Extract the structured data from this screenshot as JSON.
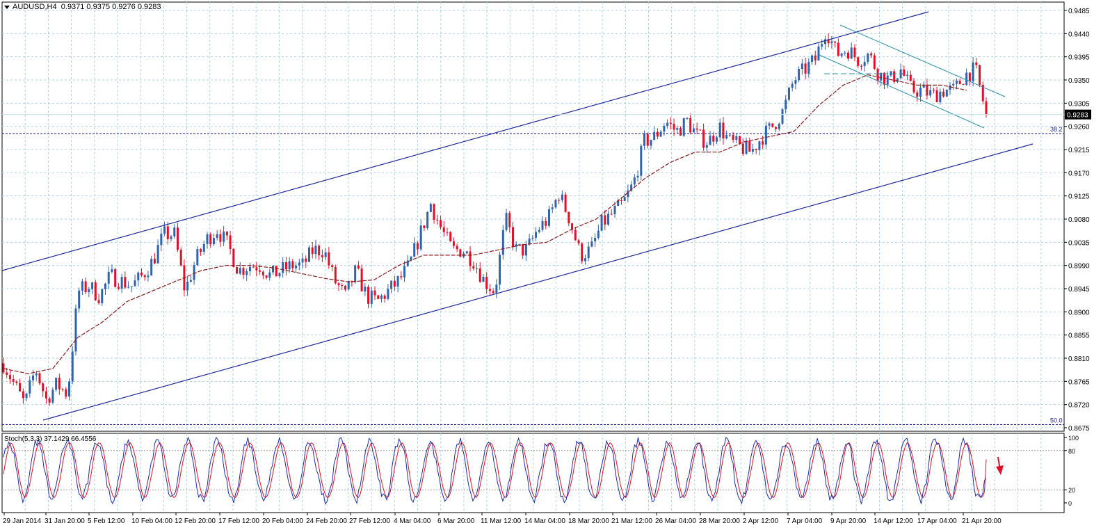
{
  "header": {
    "symbol": "AUDUSD,H4",
    "open": "0.9371",
    "high": "0.9375",
    "low": "0.9276",
    "close": "0.9283"
  },
  "stoch_header": {
    "name": "Stoch(5,3,3)",
    "main": "37.1429",
    "signal": "66.4556"
  },
  "current_price_label": "0.9283",
  "fib_levels": [
    {
      "label": "38.2",
      "price": 0.9246
    },
    {
      "label": "50.0",
      "price": 0.8681
    }
  ],
  "colors": {
    "up": "#2f64ad",
    "down": "#e0102a",
    "ma": "#8a1a1a",
    "channel": "#1f2a9a",
    "sub_channel": "#2a8fa8",
    "grid": "#a9d4e0",
    "stoch_main": "#1c2fa3",
    "stoch_signal": "#e0102a",
    "arrow": "#e0102a"
  },
  "chart_data": {
    "type": "candlestick",
    "symbol": "AUDUSD",
    "timeframe": "H4",
    "ylim": [
      0.8655,
      0.9508
    ],
    "y_ticks": [
      "0.9485",
      "0.9440",
      "0.9395",
      "0.9350",
      "0.9305",
      "0.9260",
      "0.9215",
      "0.9170",
      "0.9125",
      "0.9080",
      "0.9035",
      "0.8990",
      "0.8945",
      "0.8900",
      "0.8855",
      "0.8810",
      "0.8765",
      "0.8720",
      "0.8675"
    ],
    "x_labels": [
      "29 Jan 2014",
      "31 Jan 20:00",
      "5 Feb 12:00",
      "10 Feb 04:00",
      "12 Feb 20:00",
      "17 Feb 12:00",
      "20 Feb 04:00",
      "24 Feb 20:00",
      "27 Feb 12:00",
      "4 Mar 04:00",
      "6 Mar 20:00",
      "11 Mar 12:00",
      "14 Mar 04:00",
      "18 Mar 20:00",
      "21 Mar 12:00",
      "26 Mar 04:00",
      "28 Mar 20:00",
      "2 Apr 12:00",
      "7 Apr 04:00",
      "9 Apr 20:00",
      "14 Apr 12:00",
      "17 Apr 04:00",
      "21 Apr 20:00"
    ],
    "close_path": [
      0.88,
      0.876,
      0.872,
      0.879,
      0.873,
      0.876,
      0.874,
      0.894,
      0.895,
      0.893,
      0.897,
      0.896,
      0.895,
      0.897,
      0.9,
      0.905,
      0.905,
      0.894,
      0.9,
      0.904,
      0.906,
      0.903,
      0.898,
      0.899,
      0.899,
      0.897,
      0.898,
      0.899,
      0.899,
      0.902,
      0.902,
      0.896,
      0.893,
      0.898,
      0.893,
      0.892,
      0.894,
      0.896,
      0.899,
      0.905,
      0.911,
      0.906,
      0.902,
      0.902,
      0.9,
      0.896,
      0.894,
      0.908,
      0.902,
      0.902,
      0.906,
      0.908,
      0.913,
      0.908,
      0.901,
      0.902,
      0.907,
      0.909,
      0.911,
      0.915,
      0.923,
      0.924,
      0.927,
      0.925,
      0.927,
      0.924,
      0.923,
      0.926,
      0.923,
      0.922,
      0.921,
      0.924,
      0.926,
      0.929,
      0.935,
      0.937,
      0.939,
      0.945,
      0.94,
      0.941,
      0.939,
      0.94,
      0.936,
      0.935,
      0.937,
      0.933,
      0.933,
      0.932,
      0.933,
      0.933,
      0.936,
      0.937,
      0.9283
    ],
    "moving_average": [
      0.879,
      0.878,
      0.879,
      0.885,
      0.888,
      0.892,
      0.894,
      0.896,
      0.898,
      0.899,
      0.899,
      0.8985,
      0.8975,
      0.8965,
      0.8958,
      0.8962,
      0.899,
      0.901,
      0.901,
      0.901,
      0.902,
      0.903,
      0.9035,
      0.906,
      0.908,
      0.912,
      0.916,
      0.919,
      0.921,
      0.921,
      0.923,
      0.924,
      0.925,
      0.93,
      0.934,
      0.936,
      0.935,
      0.934,
      0.934,
      0.933
    ],
    "channel_upper": {
      "from": [
        "28 Jan 2014",
        0.8988
      ],
      "to": [
        "23 Apr 2014",
        0.9478
      ]
    },
    "channel_lower": {
      "from": [
        "31 Jan 2014",
        0.869
      ],
      "to": [
        "23 Apr 2014",
        0.9232
      ]
    },
    "last_price": 0.9283,
    "stochastic": {
      "params": "5,3,3",
      "main_last": 37.1429,
      "signal_last": 66.4556,
      "levels": [
        20,
        80
      ],
      "y_ticks": [
        "100",
        "80",
        "20",
        "0"
      ]
    }
  }
}
